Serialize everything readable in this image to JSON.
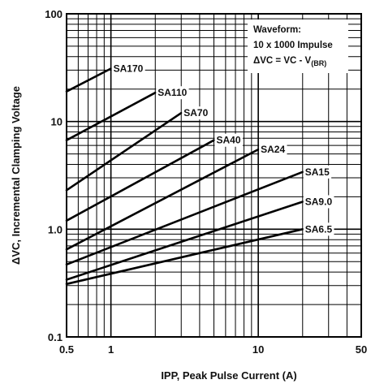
{
  "chart_data": {
    "type": "line",
    "x_scale": "log",
    "y_scale": "log",
    "xlim": [
      0.5,
      50
    ],
    "ylim": [
      0.1,
      100
    ],
    "grid": true,
    "xlabel": "IPP, Peak Pulse Current (A)",
    "ylabel": "ΔVC, Incremental Clamping Voltage",
    "x_ticks": [
      {
        "value": 0.5,
        "label": "0.5"
      },
      {
        "value": 1,
        "label": "1"
      },
      {
        "value": 10,
        "label": "10"
      },
      {
        "value": 50,
        "label": "50"
      }
    ],
    "y_ticks": [
      {
        "value": 0.1,
        "label": "0.1"
      },
      {
        "value": 1,
        "label": "1.0"
      },
      {
        "value": 10,
        "label": "10"
      },
      {
        "value": 100,
        "label": "100"
      }
    ],
    "annotation": {
      "line1": "Waveform:",
      "line2": "10 x 1000 Impulse",
      "line3_main": "ΔVC = VC - V",
      "line3_sub": "(BR)"
    },
    "series": [
      {
        "name": "SA170",
        "x": [
          0.5,
          1.0
        ],
        "y": [
          19,
          31
        ]
      },
      {
        "name": "SA110",
        "x": [
          0.5,
          2.0
        ],
        "y": [
          6.7,
          18.5
        ]
      },
      {
        "name": "SA70",
        "x": [
          0.5,
          3.0
        ],
        "y": [
          2.3,
          12
        ]
      },
      {
        "name": "SA40",
        "x": [
          0.5,
          5.0
        ],
        "y": [
          1.2,
          6.7
        ]
      },
      {
        "name": "SA24",
        "x": [
          0.5,
          10.0
        ],
        "y": [
          0.65,
          5.5
        ]
      },
      {
        "name": "SA15",
        "x": [
          0.5,
          20.0
        ],
        "y": [
          0.47,
          3.4
        ]
      },
      {
        "name": "SA9.0",
        "x": [
          0.5,
          20.0
        ],
        "y": [
          0.34,
          1.8
        ]
      },
      {
        "name": "SA6.5",
        "x": [
          0.5,
          20.0
        ],
        "y": [
          0.31,
          1.0
        ]
      }
    ]
  }
}
